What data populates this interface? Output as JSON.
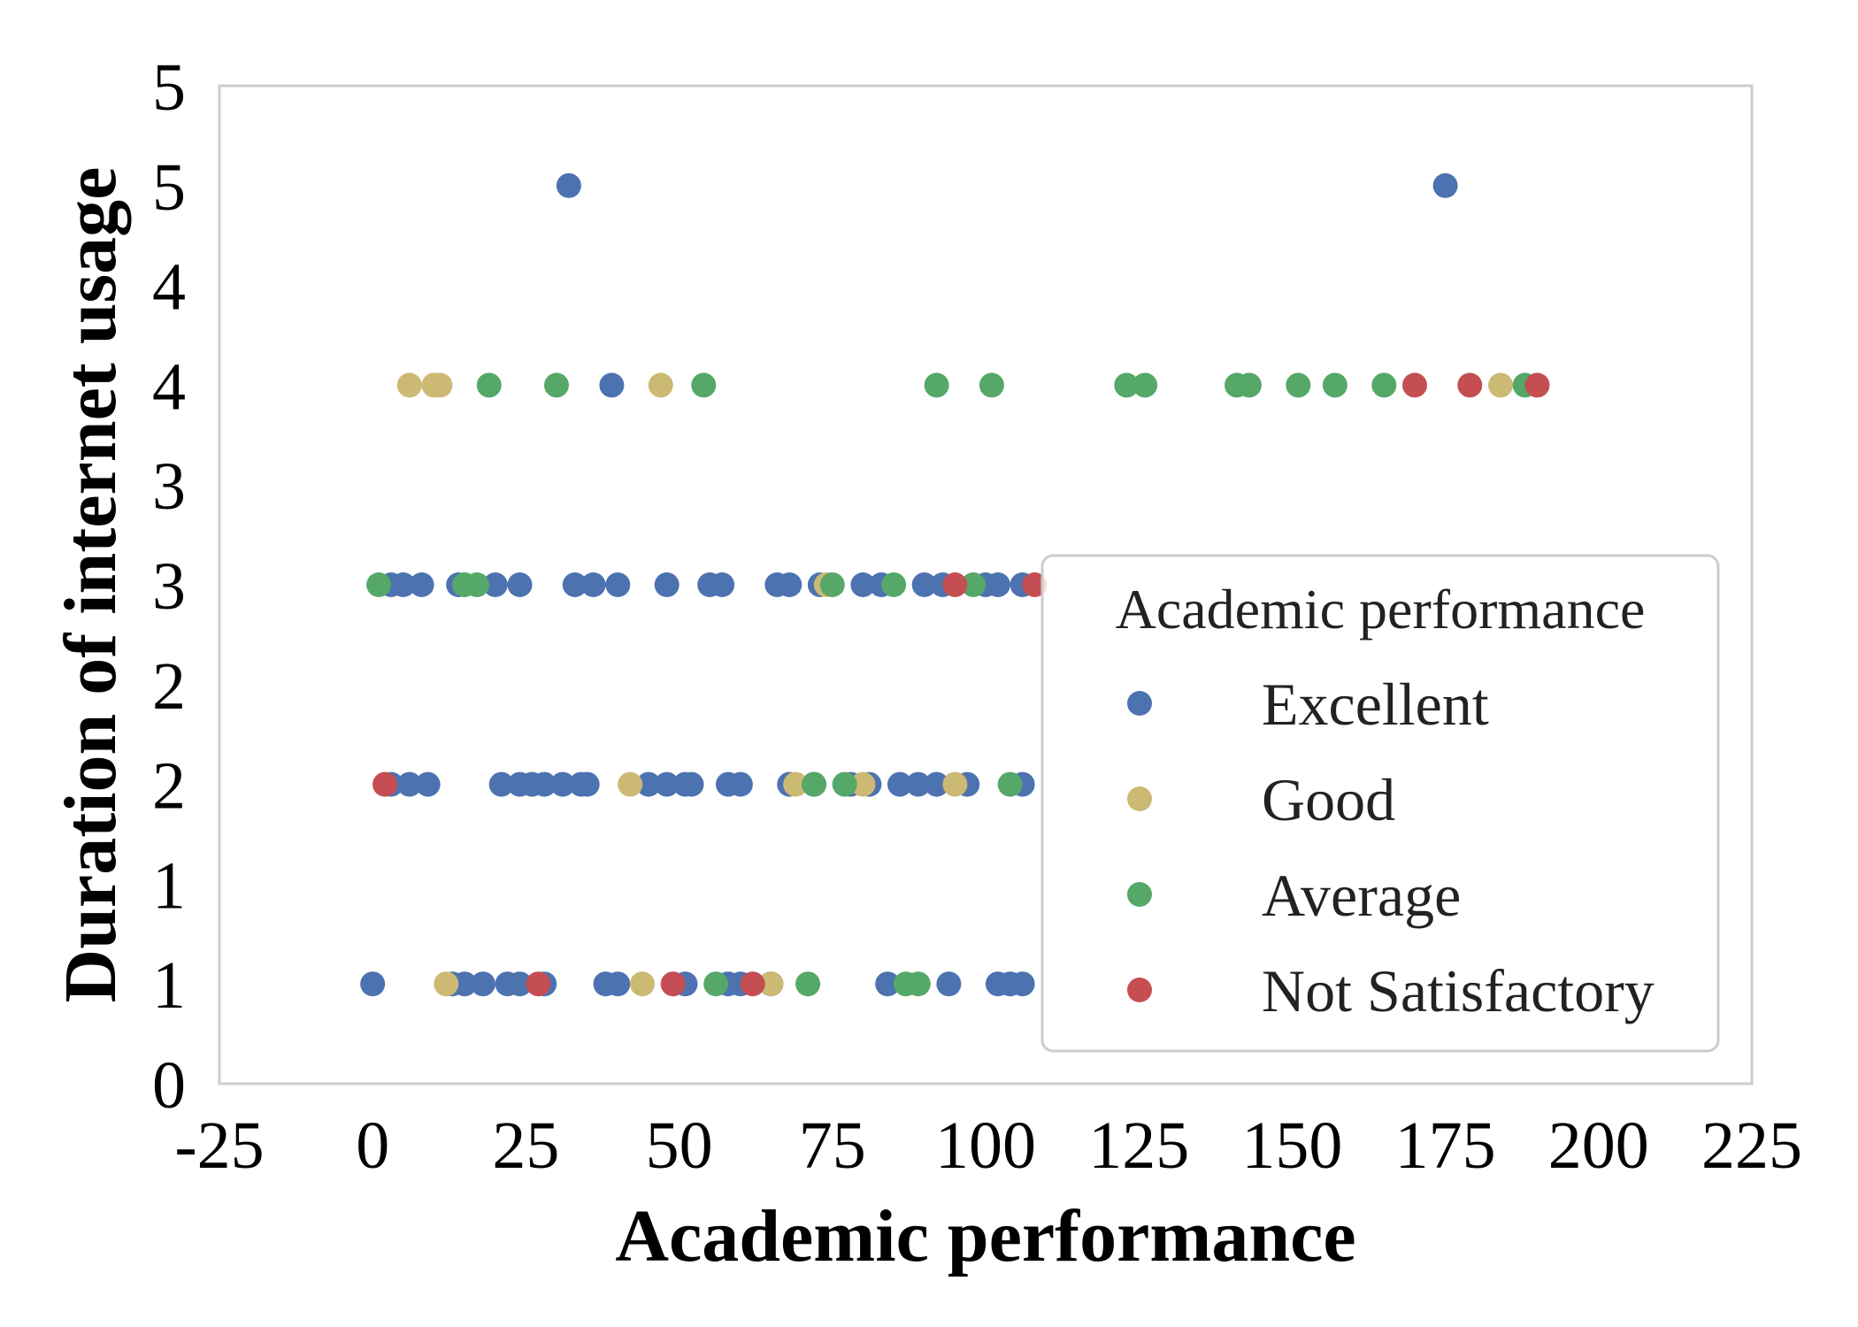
{
  "chart_data": {
    "type": "scatter",
    "xlabel": "Academic performance",
    "ylabel": "Duration of internet usage",
    "xlim": [
      -25,
      225
    ],
    "ylim": [
      0.5,
      5.5
    ],
    "x_ticks": [
      "-25",
      "0",
      "25",
      "50",
      "75",
      "100",
      "125",
      "150",
      "175",
      "200",
      "225"
    ],
    "y_ticks": [
      {
        "value": 0.5,
        "label": "0"
      },
      {
        "value": 1.0,
        "label": "1"
      },
      {
        "value": 1.5,
        "label": "1"
      },
      {
        "value": 2.0,
        "label": "2"
      },
      {
        "value": 2.5,
        "label": "2"
      },
      {
        "value": 3.0,
        "label": "3"
      },
      {
        "value": 3.5,
        "label": "3"
      },
      {
        "value": 4.0,
        "label": "4"
      },
      {
        "value": 4.5,
        "label": "4"
      },
      {
        "value": 5.0,
        "label": "5"
      },
      {
        "value": 5.5,
        "label": "5"
      }
    ],
    "grid": false,
    "legend": {
      "title": "Academic performance",
      "position": "lower-right"
    },
    "series": [
      {
        "name": "Excellent",
        "color": "#4c72b0",
        "points": [
          [
            0,
            1
          ],
          [
            13,
            1
          ],
          [
            15,
            1
          ],
          [
            18,
            1
          ],
          [
            22,
            1
          ],
          [
            24,
            1
          ],
          [
            28,
            1
          ],
          [
            38,
            1
          ],
          [
            40,
            1
          ],
          [
            51,
            1
          ],
          [
            58,
            1
          ],
          [
            60,
            1
          ],
          [
            65,
            1
          ],
          [
            84,
            1
          ],
          [
            94,
            1
          ],
          [
            102,
            1
          ],
          [
            104,
            1
          ],
          [
            106,
            1
          ],
          [
            3,
            2
          ],
          [
            6,
            2
          ],
          [
            9,
            2
          ],
          [
            21,
            2
          ],
          [
            24,
            2
          ],
          [
            26,
            2
          ],
          [
            28,
            2
          ],
          [
            31,
            2
          ],
          [
            34,
            2
          ],
          [
            35,
            2
          ],
          [
            45,
            2
          ],
          [
            48,
            2
          ],
          [
            51,
            2
          ],
          [
            52,
            2
          ],
          [
            58,
            2
          ],
          [
            60,
            2
          ],
          [
            68,
            2
          ],
          [
            72,
            2
          ],
          [
            78,
            2
          ],
          [
            81,
            2
          ],
          [
            86,
            2
          ],
          [
            89,
            2
          ],
          [
            92,
            2
          ],
          [
            97,
            2
          ],
          [
            106,
            2
          ],
          [
            3,
            3
          ],
          [
            5,
            3
          ],
          [
            8,
            3
          ],
          [
            14,
            3
          ],
          [
            20,
            3
          ],
          [
            24,
            3
          ],
          [
            33,
            3
          ],
          [
            36,
            3
          ],
          [
            40,
            3
          ],
          [
            48,
            3
          ],
          [
            55,
            3
          ],
          [
            57,
            3
          ],
          [
            66,
            3
          ],
          [
            68,
            3
          ],
          [
            73,
            3
          ],
          [
            80,
            3
          ],
          [
            83,
            3
          ],
          [
            90,
            3
          ],
          [
            93,
            3
          ],
          [
            100,
            3
          ],
          [
            102,
            3
          ],
          [
            106,
            3
          ],
          [
            39,
            4
          ],
          [
            32,
            5
          ],
          [
            175,
            5
          ]
        ]
      },
      {
        "name": "Good",
        "color": "#ccb974",
        "points": [
          [
            12,
            1
          ],
          [
            44,
            1
          ],
          [
            65,
            1
          ],
          [
            42,
            2
          ],
          [
            69,
            2
          ],
          [
            80,
            2
          ],
          [
            95,
            2
          ],
          [
            74,
            3
          ],
          [
            6,
            4
          ],
          [
            10,
            4
          ],
          [
            11,
            4
          ],
          [
            47,
            4
          ],
          [
            184,
            4
          ]
        ]
      },
      {
        "name": "Average",
        "color": "#55a868",
        "points": [
          [
            56,
            1
          ],
          [
            71,
            1
          ],
          [
            87,
            1
          ],
          [
            89,
            1
          ],
          [
            72,
            2
          ],
          [
            77,
            2
          ],
          [
            104,
            2
          ],
          [
            1,
            3
          ],
          [
            15,
            3
          ],
          [
            17,
            3
          ],
          [
            75,
            3
          ],
          [
            85,
            3
          ],
          [
            98,
            3
          ],
          [
            19,
            4
          ],
          [
            30,
            4
          ],
          [
            54,
            4
          ],
          [
            92,
            4
          ],
          [
            101,
            4
          ],
          [
            123,
            4
          ],
          [
            126,
            4
          ],
          [
            141,
            4
          ],
          [
            143,
            4
          ],
          [
            151,
            4
          ],
          [
            157,
            4
          ],
          [
            165,
            4
          ],
          [
            188,
            4
          ]
        ]
      },
      {
        "name": "Not Satisfactory",
        "color": "#c44e52",
        "points": [
          [
            27,
            1
          ],
          [
            49,
            1
          ],
          [
            62,
            1
          ],
          [
            2,
            2
          ],
          [
            95,
            3
          ],
          [
            108,
            3
          ],
          [
            170,
            4
          ],
          [
            179,
            4
          ],
          [
            190,
            4
          ]
        ]
      }
    ]
  }
}
